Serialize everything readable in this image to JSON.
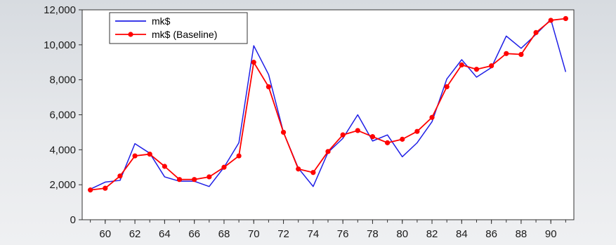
{
  "chart_data": {
    "type": "line",
    "title": "",
    "xlabel": "",
    "ylabel": "",
    "x": [
      1959,
      1960,
      1961,
      1962,
      1963,
      1964,
      1965,
      1966,
      1967,
      1968,
      1969,
      1970,
      1971,
      1972,
      1973,
      1974,
      1975,
      1976,
      1977,
      1978,
      1979,
      1980,
      1981,
      1982,
      1983,
      1984,
      1985,
      1986,
      1987,
      1988,
      1989,
      1990,
      1991
    ],
    "xtick_labels": [
      "60",
      "62",
      "64",
      "66",
      "68",
      "70",
      "72",
      "74",
      "76",
      "78",
      "80",
      "82",
      "84",
      "86",
      "88",
      "90"
    ],
    "xtick_values": [
      1960,
      1962,
      1964,
      1966,
      1968,
      1970,
      1972,
      1974,
      1976,
      1978,
      1980,
      1982,
      1984,
      1986,
      1988,
      1990
    ],
    "ylim": [
      0,
      12000
    ],
    "yticks": [
      0,
      2000,
      4000,
      6000,
      8000,
      10000,
      12000
    ],
    "ytick_labels": [
      "0",
      "2,000",
      "4,000",
      "6,000",
      "8,000",
      "10,000",
      "12,000"
    ],
    "legend_position": "top-left",
    "grid": false,
    "series": [
      {
        "name": "mk$",
        "color": "#1f1fe6",
        "marker": "none",
        "values": [
          1750,
          2150,
          2250,
          4350,
          3800,
          2450,
          2200,
          2200,
          1900,
          3000,
          4400,
          9950,
          8300,
          5000,
          2950,
          1900,
          3850,
          4650,
          6000,
          4500,
          4850,
          3600,
          4400,
          5600,
          8050,
          9150,
          8150,
          8700,
          10500,
          9800,
          10600,
          11450,
          8450
        ]
      },
      {
        "name": "mk$ (Baseline)",
        "color": "#ff0000",
        "marker": "circle",
        "values": [
          1700,
          1800,
          2500,
          3650,
          3750,
          3050,
          2300,
          2300,
          2450,
          3000,
          3650,
          9000,
          7600,
          5000,
          2900,
          2700,
          3900,
          4850,
          5100,
          4750,
          4400,
          4600,
          5050,
          5850,
          7600,
          8850,
          8600,
          8800,
          9500,
          9450,
          10700,
          11400,
          11500
        ]
      }
    ]
  }
}
